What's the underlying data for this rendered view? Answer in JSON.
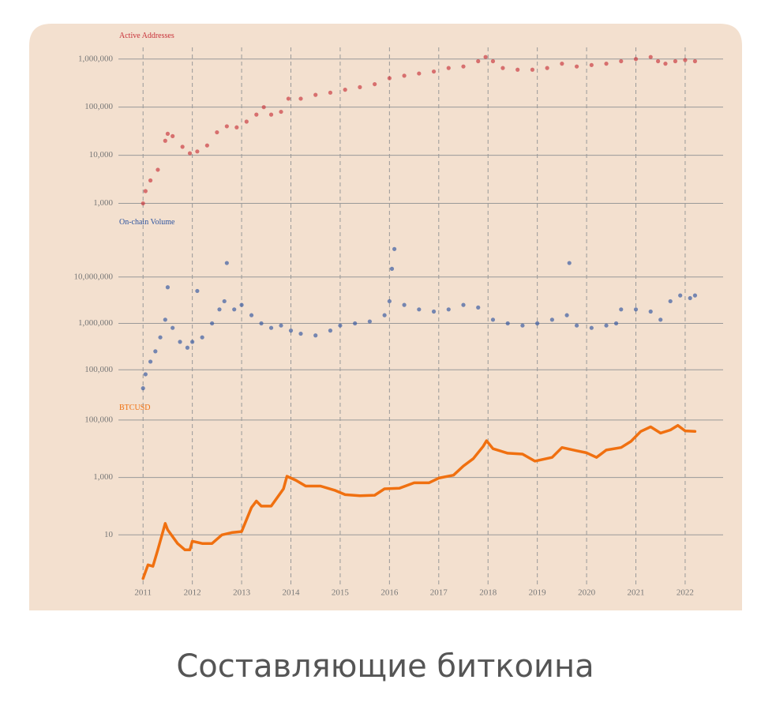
{
  "caption": "Составляющие биткоина",
  "chart_data": [
    {
      "type": "scatter",
      "title": "Active Addresses",
      "color": "#c8323a",
      "log": true,
      "grid": true,
      "xlim": [
        2010.5,
        2022.77
      ],
      "ylim": [
        700,
        1500000
      ],
      "yticks": [
        {
          "value": 1000,
          "label": "1,000"
        },
        {
          "value": 10000,
          "label": "10,000"
        },
        {
          "value": 100000,
          "label": "100,000"
        },
        {
          "value": 1000000,
          "label": "1,000,000"
        }
      ],
      "x": [
        2011.0,
        2011.05,
        2011.15,
        2011.3,
        2011.45,
        2011.5,
        2011.6,
        2011.8,
        2011.95,
        2012.1,
        2012.3,
        2012.5,
        2012.7,
        2012.9,
        2013.1,
        2013.3,
        2013.45,
        2013.6,
        2013.8,
        2013.95,
        2014.2,
        2014.5,
        2014.8,
        2015.1,
        2015.4,
        2015.7,
        2016.0,
        2016.3,
        2016.6,
        2016.9,
        2017.2,
        2017.5,
        2017.8,
        2017.95,
        2018.1,
        2018.3,
        2018.6,
        2018.9,
        2019.2,
        2019.5,
        2019.8,
        2020.1,
        2020.4,
        2020.7,
        2021.0,
        2021.3,
        2021.45,
        2021.6,
        2021.8,
        2022.0,
        2022.2
      ],
      "values": [
        1000,
        1800,
        3000,
        5000,
        20000,
        28000,
        25000,
        15000,
        11000,
        12000,
        16000,
        30000,
        40000,
        38000,
        50000,
        70000,
        100000,
        70000,
        80000,
        150000,
        150000,
        180000,
        200000,
        230000,
        260000,
        300000,
        400000,
        450000,
        500000,
        550000,
        650000,
        700000,
        900000,
        1100000,
        900000,
        650000,
        600000,
        600000,
        650000,
        800000,
        700000,
        750000,
        800000,
        900000,
        1000000,
        1100000,
        900000,
        800000,
        900000,
        950000,
        900000
      ]
    },
    {
      "type": "scatter",
      "title": "On-chain Volume",
      "color": "#2f55a0",
      "log": true,
      "grid": true,
      "xlim": [
        2010.5,
        2022.77
      ],
      "ylim": [
        30000,
        60000000
      ],
      "yticks": [
        {
          "value": 100000,
          "label": "100,000"
        },
        {
          "value": 1000000,
          "label": "1,000,000"
        },
        {
          "value": 10000000,
          "label": "10,000,000"
        }
      ],
      "x": [
        2011.0,
        2011.05,
        2011.15,
        2011.25,
        2011.35,
        2011.45,
        2011.5,
        2011.6,
        2011.75,
        2011.9,
        2012.0,
        2012.1,
        2012.2,
        2012.4,
        2012.55,
        2012.65,
        2012.7,
        2012.85,
        2013.0,
        2013.2,
        2013.4,
        2013.6,
        2013.8,
        2014.0,
        2014.2,
        2014.5,
        2014.8,
        2015.0,
        2015.3,
        2015.6,
        2015.9,
        2016.0,
        2016.05,
        2016.1,
        2016.3,
        2016.6,
        2016.9,
        2017.2,
        2017.5,
        2017.8,
        2018.1,
        2018.4,
        2018.7,
        2019.0,
        2019.3,
        2019.6,
        2019.65,
        2019.8,
        2020.1,
        2020.4,
        2020.6,
        2020.7,
        2021.0,
        2021.3,
        2021.5,
        2021.7,
        2021.9,
        2022.1,
        2022.2
      ],
      "values": [
        40000,
        80000,
        150000,
        250000,
        500000,
        1200000,
        6000000,
        800000,
        400000,
        300000,
        400000,
        5000000,
        500000,
        1000000,
        2000000,
        3000000,
        20000000,
        2000000,
        2500000,
        1500000,
        1000000,
        800000,
        900000,
        700000,
        600000,
        550000,
        700000,
        900000,
        1000000,
        1100000,
        1500000,
        3000000,
        15000000,
        40000000,
        2500000,
        2000000,
        1800000,
        2000000,
        2500000,
        2200000,
        1200000,
        1000000,
        900000,
        1000000,
        1200000,
        1500000,
        20000000,
        900000,
        800000,
        900000,
        1000000,
        2000000,
        2000000,
        1800000,
        1200000,
        3000000,
        4000000,
        3500000,
        4000000
      ]
    },
    {
      "type": "line",
      "title": "BTCUSD",
      "color": "#f07010",
      "log": true,
      "grid": true,
      "xlim": [
        2010.5,
        2022.77
      ],
      "ylim": [
        0.2,
        120000
      ],
      "yticks": [
        10,
        {
          "value": 1000,
          "label": "1,000"
        },
        {
          "value": 100000,
          "label": "100,000"
        }
      ],
      "xticks": [
        2011,
        2012,
        2013,
        2014,
        2015,
        2016,
        2017,
        2018,
        2019,
        2020,
        2021,
        2022
      ],
      "x": [
        2011.0,
        2011.1,
        2011.2,
        2011.3,
        2011.45,
        2011.5,
        2011.7,
        2011.85,
        2011.95,
        2012.0,
        2012.2,
        2012.4,
        2012.6,
        2012.8,
        2013.0,
        2013.2,
        2013.3,
        2013.4,
        2013.6,
        2013.85,
        2013.92,
        2014.1,
        2014.3,
        2014.6,
        2014.9,
        2015.1,
        2015.4,
        2015.7,
        2015.9,
        2016.2,
        2016.5,
        2016.8,
        2017.0,
        2017.3,
        2017.5,
        2017.7,
        2017.9,
        2017.97,
        2018.1,
        2018.4,
        2018.7,
        2018.95,
        2019.3,
        2019.5,
        2019.8,
        2020.0,
        2020.2,
        2020.4,
        2020.7,
        2020.9,
        2021.1,
        2021.3,
        2021.5,
        2021.7,
        2021.85,
        2022.0,
        2022.2
      ],
      "values": [
        0.3,
        0.9,
        0.8,
        3,
        25,
        15,
        5,
        3,
        3,
        6,
        5,
        5,
        10,
        12,
        13,
        90,
        150,
        100,
        100,
        400,
        1100,
        800,
        500,
        500,
        350,
        250,
        230,
        240,
        400,
        420,
        650,
        650,
        950,
        1200,
        2500,
        4500,
        12000,
        19000,
        10000,
        7000,
        6500,
        3700,
        5000,
        11000,
        8500,
        7200,
        5000,
        9000,
        11000,
        18000,
        40000,
        58000,
        35000,
        45000,
        65000,
        42000,
        40000
      ]
    }
  ]
}
